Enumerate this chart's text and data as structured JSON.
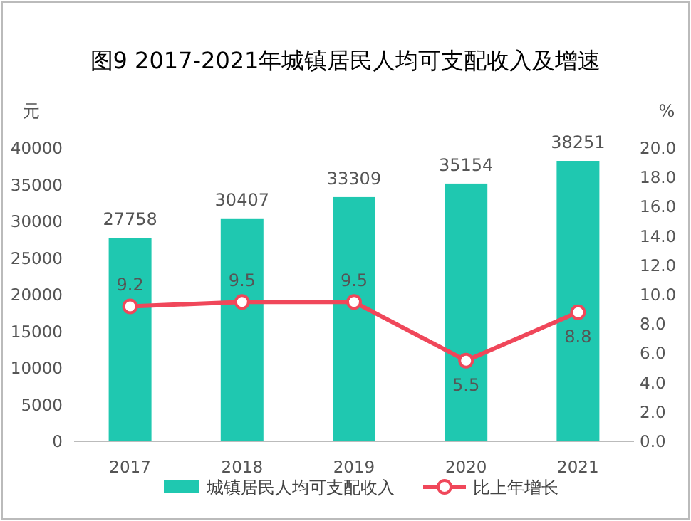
{
  "chart_data": {
    "type": "bar",
    "title": "图9  2017-2021年城镇居民人均可支配收入及增速",
    "categories": [
      "2017",
      "2018",
      "2019",
      "2020",
      "2021"
    ],
    "series": [
      {
        "name": "城镇居民人均可支配收入",
        "color": "#1fc8b0",
        "values": [
          27758,
          30407,
          33309,
          35154,
          38251
        ]
      },
      {
        "name": "比上年增长",
        "type": "line",
        "axis": "y2",
        "color": "#f0475a",
        "marker": "circle",
        "values": [
          9.2,
          9.5,
          9.5,
          5.5,
          8.8
        ]
      }
    ],
    "ylabel": "元",
    "y2label": "%",
    "ylim": [
      0,
      40000
    ],
    "yticks": [
      0,
      5000,
      10000,
      15000,
      20000,
      25000,
      30000,
      35000,
      40000
    ],
    "y2lim": [
      0,
      20
    ],
    "y2ticks": [
      {
        "value": 0,
        "label": "0.0"
      },
      {
        "value": 2,
        "label": "2.0"
      },
      {
        "value": 4,
        "label": "4.0"
      },
      {
        "value": 6,
        "label": "6.0"
      },
      {
        "value": 8,
        "label": "8.0"
      },
      {
        "value": 10,
        "label": "10.0"
      },
      {
        "value": 12,
        "label": "12.0"
      },
      {
        "value": 14,
        "label": "14.0"
      },
      {
        "value": 16,
        "label": "16.0"
      },
      {
        "value": 18,
        "label": "18.0"
      },
      {
        "value": 20,
        "label": "20.0"
      }
    ],
    "data_labels": true,
    "legend": "bottom",
    "grid": false
  }
}
